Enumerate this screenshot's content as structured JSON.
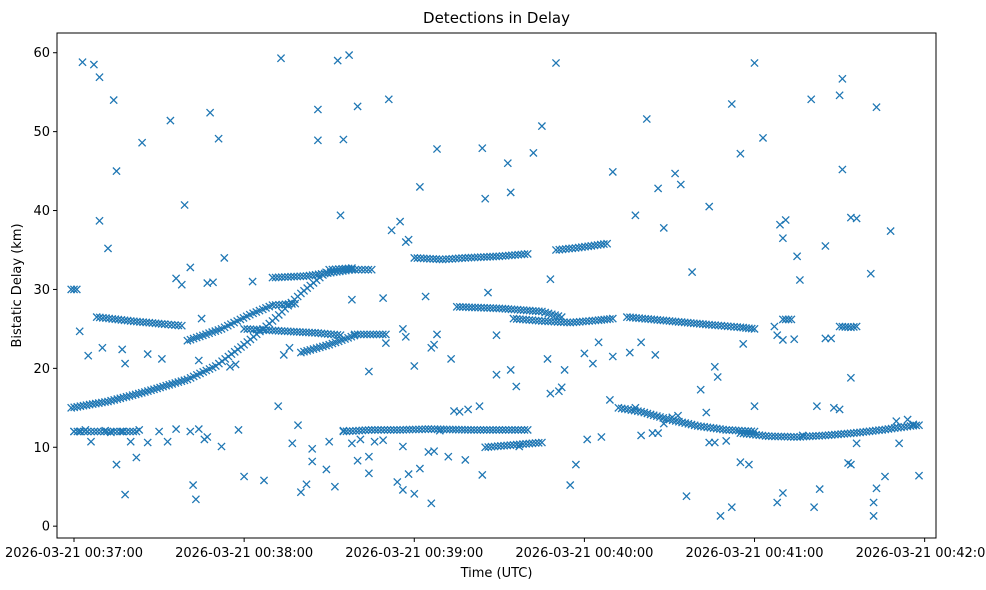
{
  "chart_data": {
    "type": "scatter",
    "title": "Detections in Delay",
    "xlabel": "Time (UTC)",
    "ylabel": "Bistatic Delay (km)",
    "x_units": "seconds after 2026-03-21 00:37:00 UTC",
    "xlim": [
      -6,
      304
    ],
    "ylim": [
      -1.5,
      62.5
    ],
    "x_ticks": [
      {
        "value": 0,
        "label": "2026-03-21 00:37:00"
      },
      {
        "value": 60,
        "label": "2026-03-21 00:38:00"
      },
      {
        "value": 120,
        "label": "2026-03-21 00:39:00"
      },
      {
        "value": 180,
        "label": "2026-03-21 00:40:00"
      },
      {
        "value": 240,
        "label": "2026-03-21 00:41:00"
      },
      {
        "value": 300,
        "label": "2026-03-21 00:42:00"
      }
    ],
    "y_ticks": [
      0,
      10,
      20,
      30,
      40,
      50,
      60
    ],
    "marker": "x",
    "color": "#1f77b4",
    "grid": false,
    "legend": "none",
    "tracks": [
      {
        "points": [
          [
            -1,
            15.0
          ],
          [
            12,
            15.8
          ],
          [
            25,
            17.0
          ],
          [
            40,
            18.6
          ],
          [
            50,
            20.3
          ],
          [
            60,
            23.0
          ],
          [
            70,
            26.0
          ],
          [
            80,
            29.5
          ],
          [
            90,
            32.5
          ],
          [
            98,
            32.7
          ]
        ]
      },
      {
        "points": [
          [
            8,
            26.5
          ],
          [
            20,
            26.0
          ],
          [
            32,
            25.6
          ],
          [
            38,
            25.4
          ]
        ]
      },
      {
        "points": [
          [
            40,
            23.5
          ],
          [
            52,
            25.0
          ],
          [
            62,
            26.8
          ],
          [
            70,
            28.0
          ],
          [
            78,
            28.2
          ]
        ]
      },
      {
        "points": [
          [
            60,
            25.0
          ],
          [
            70,
            24.8
          ],
          [
            85,
            24.5
          ],
          [
            94,
            24.2
          ]
        ]
      },
      {
        "points": [
          [
            70,
            31.5
          ],
          [
            82,
            31.7
          ],
          [
            98,
            32.5
          ],
          [
            105,
            32.5
          ]
        ]
      },
      {
        "points": [
          [
            80,
            22.0
          ],
          [
            90,
            23.0
          ],
          [
            100,
            24.3
          ],
          [
            110,
            24.3
          ]
        ]
      },
      {
        "points": [
          [
            -1,
            30.0
          ],
          [
            0,
            30.0
          ],
          [
            1,
            30.0
          ]
        ]
      },
      {
        "points": [
          [
            0,
            12.0
          ],
          [
            6,
            12.0
          ],
          [
            14,
            12.0
          ],
          [
            22,
            12.0
          ]
        ]
      },
      {
        "points": [
          [
            95,
            12.0
          ],
          [
            105,
            12.2
          ],
          [
            115,
            12.2
          ],
          [
            125,
            12.3
          ],
          [
            140,
            12.2
          ],
          [
            160,
            12.2
          ]
        ]
      },
      {
        "points": [
          [
            120,
            34.0
          ],
          [
            130,
            33.8
          ],
          [
            138,
            34.0
          ],
          [
            150,
            34.2
          ],
          [
            160,
            34.5
          ]
        ]
      },
      {
        "points": [
          [
            135,
            27.8
          ],
          [
            150,
            27.6
          ],
          [
            165,
            27.2
          ],
          [
            172,
            26.5
          ]
        ]
      },
      {
        "points": [
          [
            155,
            26.3
          ],
          [
            165,
            26.0
          ],
          [
            175,
            25.8
          ],
          [
            185,
            26.1
          ],
          [
            190,
            26.3
          ]
        ]
      },
      {
        "points": [
          [
            170,
            35.0
          ],
          [
            178,
            35.3
          ],
          [
            188,
            35.8
          ]
        ]
      },
      {
        "points": [
          [
            145,
            10.0
          ],
          [
            155,
            10.3
          ],
          [
            165,
            10.6
          ]
        ]
      },
      {
        "points": [
          [
            195,
            26.5
          ],
          [
            210,
            26.0
          ],
          [
            225,
            25.5
          ],
          [
            235,
            25.2
          ],
          [
            240,
            25.0
          ]
        ]
      },
      {
        "points": [
          [
            192,
            15.0
          ],
          [
            200,
            14.5
          ],
          [
            210,
            13.5
          ],
          [
            220,
            12.7
          ],
          [
            230,
            12.2
          ],
          [
            240,
            12.0
          ]
        ]
      },
      {
        "points": [
          [
            235,
            11.8
          ],
          [
            245,
            11.4
          ],
          [
            255,
            11.3
          ],
          [
            265,
            11.5
          ],
          [
            275,
            11.8
          ],
          [
            285,
            12.2
          ],
          [
            295,
            12.7
          ],
          [
            298,
            12.8
          ]
        ]
      },
      {
        "points": [
          [
            270,
            25.3
          ],
          [
            274,
            25.2
          ],
          [
            276,
            25.3
          ]
        ]
      },
      {
        "points": [
          [
            250,
            26.2
          ],
          [
            253,
            26.2
          ]
        ]
      }
    ],
    "scatter_points": [
      [
        3,
        58.8
      ],
      [
        7,
        58.5
      ],
      [
        9,
        56.9
      ],
      [
        14,
        54.0
      ],
      [
        15,
        45.0
      ],
      [
        24,
        48.6
      ],
      [
        12,
        35.2
      ],
      [
        34,
        51.4
      ],
      [
        39,
        40.7
      ],
      [
        48,
        52.4
      ],
      [
        51,
        49.1
      ],
      [
        53,
        34.0
      ],
      [
        73,
        59.3
      ],
      [
        86,
        52.8
      ],
      [
        86,
        48.9
      ],
      [
        93,
        59.0
      ],
      [
        97,
        59.7
      ],
      [
        95,
        49.0
      ],
      [
        100,
        53.2
      ],
      [
        94,
        39.4
      ],
      [
        111,
        54.1
      ],
      [
        128,
        47.8
      ],
      [
        144,
        47.9
      ],
      [
        145,
        41.5
      ],
      [
        153,
        46.0
      ],
      [
        154,
        42.3
      ],
      [
        162,
        47.3
      ],
      [
        165,
        50.7
      ],
      [
        170,
        58.7
      ],
      [
        168,
        31.3
      ],
      [
        190,
        44.9
      ],
      [
        202,
        51.6
      ],
      [
        206,
        42.8
      ],
      [
        212,
        44.7
      ],
      [
        214,
        43.3
      ],
      [
        224,
        40.5
      ],
      [
        232,
        53.5
      ],
      [
        235,
        47.2
      ],
      [
        240,
        58.7
      ],
      [
        243,
        49.2
      ],
      [
        249,
        38.2
      ],
      [
        251,
        38.8
      ],
      [
        260,
        54.1
      ],
      [
        265,
        35.5
      ],
      [
        270,
        54.6
      ],
      [
        271,
        56.7
      ],
      [
        271,
        45.2
      ],
      [
        274,
        39.1
      ],
      [
        276,
        39.0
      ],
      [
        283,
        53.1
      ],
      [
        288,
        37.4
      ],
      [
        250,
        36.5
      ],
      [
        255,
        34.2
      ],
      [
        281,
        32.0
      ],
      [
        208,
        37.8
      ],
      [
        198,
        39.4
      ],
      [
        9,
        38.7
      ],
      [
        115,
        38.6
      ],
      [
        122,
        43.0
      ],
      [
        112,
        37.5
      ],
      [
        117,
        36.0
      ],
      [
        118,
        36.3
      ],
      [
        2,
        24.7
      ],
      [
        5,
        21.6
      ],
      [
        10,
        22.6
      ],
      [
        17,
        22.4
      ],
      [
        18,
        20.6
      ],
      [
        26,
        21.8
      ],
      [
        31,
        21.2
      ],
      [
        36,
        31.4
      ],
      [
        38,
        30.6
      ],
      [
        41,
        32.8
      ],
      [
        45,
        26.3
      ],
      [
        44,
        21.0
      ],
      [
        47,
        30.8
      ],
      [
        49,
        30.9
      ],
      [
        55,
        20.2
      ],
      [
        57,
        20.5
      ],
      [
        63,
        31.0
      ],
      [
        74,
        21.7
      ],
      [
        76,
        22.6
      ],
      [
        98,
        28.7
      ],
      [
        99,
        24.3
      ],
      [
        104,
        19.6
      ],
      [
        109,
        28.9
      ],
      [
        110,
        23.2
      ],
      [
        116,
        25.0
      ],
      [
        117,
        24.0
      ],
      [
        120,
        20.3
      ],
      [
        124,
        29.1
      ],
      [
        126,
        22.6
      ],
      [
        127,
        23.0
      ],
      [
        128,
        24.3
      ],
      [
        133,
        21.2
      ],
      [
        146,
        29.6
      ],
      [
        149,
        24.2
      ],
      [
        156,
        17.7
      ],
      [
        167,
        21.2
      ],
      [
        168,
        16.8
      ],
      [
        172,
        17.6
      ],
      [
        180,
        21.9
      ],
      [
        183,
        20.6
      ],
      [
        185,
        23.3
      ],
      [
        189,
        16.0
      ],
      [
        190,
        21.5
      ],
      [
        196,
        22.0
      ],
      [
        200,
        23.3
      ],
      [
        205,
        21.7
      ],
      [
        218,
        32.2
      ],
      [
        226,
        20.2
      ],
      [
        227,
        18.9
      ],
      [
        236,
        23.1
      ],
      [
        247,
        25.3
      ],
      [
        254,
        23.7
      ],
      [
        256,
        31.2
      ],
      [
        265,
        23.8
      ],
      [
        267,
        23.8
      ],
      [
        274,
        18.8
      ],
      [
        248,
        24.2
      ],
      [
        250,
        23.6
      ],
      [
        0,
        12.0
      ],
      [
        2,
        12.0
      ],
      [
        4,
        12.2
      ],
      [
        6,
        10.7
      ],
      [
        11,
        12.1
      ],
      [
        13,
        11.9
      ],
      [
        15,
        7.8
      ],
      [
        17,
        12.0
      ],
      [
        18,
        4.0
      ],
      [
        20,
        10.7
      ],
      [
        22,
        8.7
      ],
      [
        23,
        12.2
      ],
      [
        26,
        10.6
      ],
      [
        30,
        12.0
      ],
      [
        33,
        10.7
      ],
      [
        36,
        12.3
      ],
      [
        41,
        12.0
      ],
      [
        42,
        5.2
      ],
      [
        43,
        3.4
      ],
      [
        44,
        12.3
      ],
      [
        46,
        11.0
      ],
      [
        47,
        11.3
      ],
      [
        52,
        10.1
      ],
      [
        58,
        12.2
      ],
      [
        60,
        6.3
      ],
      [
        67,
        5.8
      ],
      [
        72,
        15.2
      ],
      [
        77,
        10.5
      ],
      [
        79,
        12.8
      ],
      [
        80,
        4.3
      ],
      [
        82,
        5.3
      ],
      [
        84,
        8.2
      ],
      [
        84,
        9.8
      ],
      [
        89,
        7.2
      ],
      [
        90,
        10.7
      ],
      [
        92,
        5.0
      ],
      [
        95,
        12.1
      ],
      [
        98,
        10.5
      ],
      [
        100,
        8.3
      ],
      [
        101,
        11.0
      ],
      [
        104,
        6.7
      ],
      [
        104,
        8.8
      ],
      [
        106,
        10.7
      ],
      [
        109,
        10.9
      ],
      [
        114,
        5.6
      ],
      [
        116,
        4.6
      ],
      [
        116,
        10.1
      ],
      [
        118,
        6.6
      ],
      [
        120,
        4.1
      ],
      [
        122,
        7.3
      ],
      [
        125,
        9.4
      ],
      [
        126,
        2.9
      ],
      [
        127,
        9.5
      ],
      [
        129,
        12.1
      ],
      [
        132,
        8.8
      ],
      [
        134,
        14.6
      ],
      [
        136,
        14.5
      ],
      [
        138,
        8.4
      ],
      [
        139,
        14.8
      ],
      [
        143,
        15.2
      ],
      [
        144,
        6.5
      ],
      [
        149,
        19.2
      ],
      [
        154,
        19.8
      ],
      [
        157,
        10.1
      ],
      [
        171,
        17.1
      ],
      [
        173,
        19.8
      ],
      [
        175,
        5.2
      ],
      [
        177,
        7.8
      ],
      [
        181,
        11.0
      ],
      [
        186,
        11.3
      ],
      [
        198,
        15.0
      ],
      [
        200,
        11.5
      ],
      [
        204,
        11.8
      ],
      [
        206,
        11.8
      ],
      [
        208,
        13.0
      ],
      [
        211,
        13.8
      ],
      [
        213,
        14.0
      ],
      [
        216,
        3.8
      ],
      [
        221,
        17.3
      ],
      [
        223,
        14.4
      ],
      [
        224,
        10.6
      ],
      [
        226,
        10.6
      ],
      [
        228,
        1.3
      ],
      [
        230,
        10.8
      ],
      [
        232,
        2.4
      ],
      [
        235,
        8.1
      ],
      [
        238,
        7.8
      ],
      [
        240,
        15.2
      ],
      [
        248,
        3.0
      ],
      [
        250,
        4.2
      ],
      [
        257,
        11.5
      ],
      [
        261,
        2.4
      ],
      [
        262,
        15.2
      ],
      [
        263,
        4.7
      ],
      [
        268,
        15.0
      ],
      [
        270,
        14.8
      ],
      [
        273,
        8.0
      ],
      [
        274,
        7.8
      ],
      [
        276,
        10.5
      ],
      [
        282,
        1.3
      ],
      [
        282,
        3.0
      ],
      [
        283,
        4.8
      ],
      [
        286,
        6.3
      ],
      [
        291,
        10.5
      ],
      [
        298,
        6.4
      ],
      [
        290,
        13.3
      ],
      [
        294,
        13.5
      ],
      [
        296,
        12.9
      ]
    ]
  }
}
